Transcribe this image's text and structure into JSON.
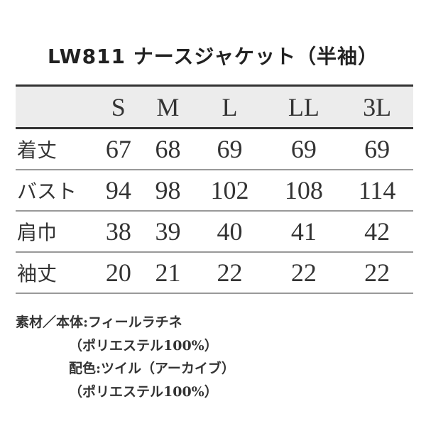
{
  "title": "LW811 ナースジャケット（半袖）",
  "table": {
    "headers": [
      "",
      "S",
      "M",
      "L",
      "LL",
      "3L"
    ],
    "rows": [
      {
        "label": "着丈",
        "values": [
          "67",
          "68",
          "69",
          "69",
          "69"
        ]
      },
      {
        "label": "バスト",
        "values": [
          "94",
          "98",
          "102",
          "108",
          "114"
        ]
      },
      {
        "label": "肩巾",
        "values": [
          "38",
          "39",
          "40",
          "41",
          "42"
        ]
      },
      {
        "label": "袖丈",
        "values": [
          "20",
          "21",
          "22",
          "22",
          "22"
        ]
      }
    ]
  },
  "notes": [
    "素材／本体:フィールラチネ",
    "（ポリエステル100%）",
    "配色:ツイル（アーカイブ）",
    "（ポリエステル100%）"
  ]
}
